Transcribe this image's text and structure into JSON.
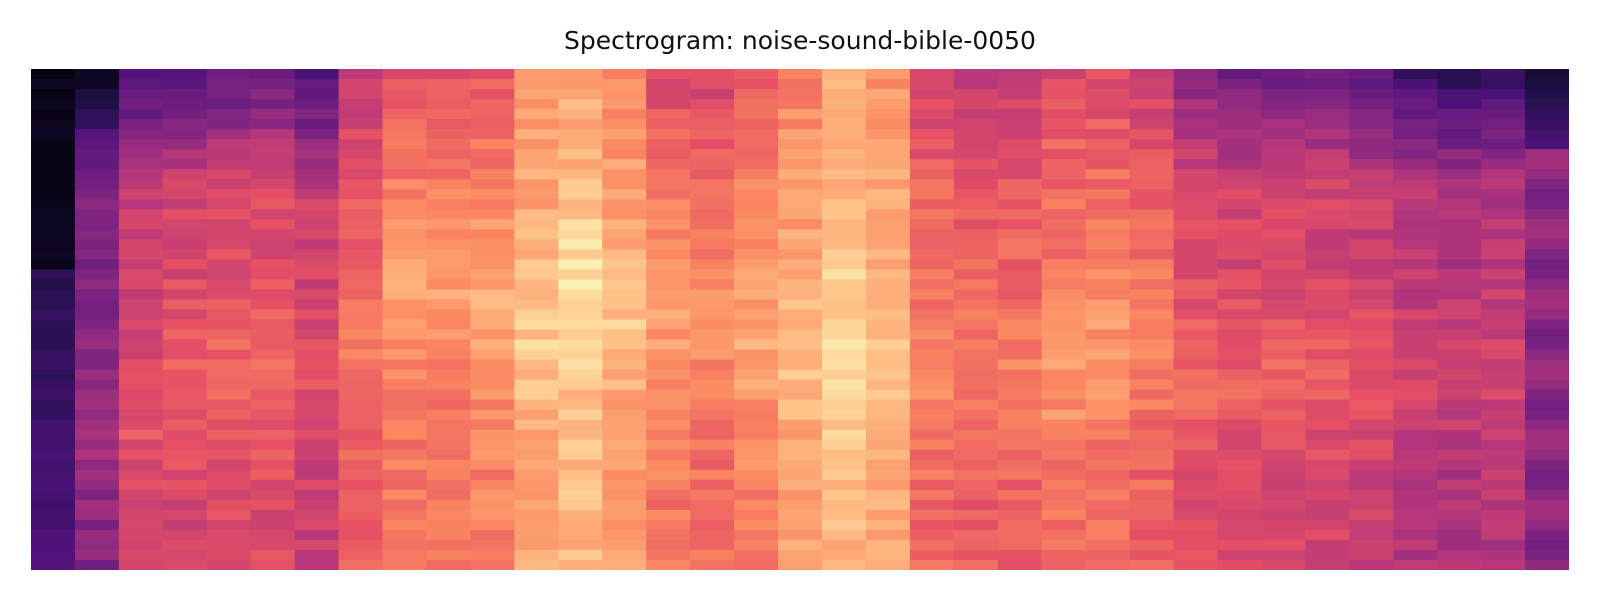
{
  "chart_data": {
    "type": "heatmap",
    "title": "Spectrogram: noise-sound-bible-0050",
    "xlabel": "",
    "ylabel": "",
    "colormap": "magma",
    "grid": false,
    "axes_visible": false,
    "columns": 35,
    "rows": 50,
    "value_range": [
      0,
      1
    ],
    "column_envelope": [
      0.05,
      0.38,
      0.55,
      0.58,
      0.6,
      0.6,
      0.55,
      0.65,
      0.72,
      0.72,
      0.74,
      0.82,
      0.86,
      0.8,
      0.72,
      0.7,
      0.74,
      0.8,
      0.86,
      0.82,
      0.68,
      0.65,
      0.66,
      0.7,
      0.7,
      0.67,
      0.6,
      0.58,
      0.58,
      0.57,
      0.55,
      0.5,
      0.48,
      0.5,
      0.4
    ],
    "column_top_rolloff": [
      0.0,
      0.3,
      0.32,
      0.34,
      0.3,
      0.28,
      0.32,
      0.12,
      0.1,
      0.1,
      0.08,
      0.05,
      0.05,
      0.06,
      0.12,
      0.12,
      0.08,
      0.06,
      0.04,
      0.05,
      0.12,
      0.12,
      0.12,
      0.1,
      0.1,
      0.12,
      0.2,
      0.24,
      0.24,
      0.22,
      0.26,
      0.3,
      0.3,
      0.32,
      0.3
    ],
    "column_peak_row": [
      25,
      35,
      35,
      30,
      30,
      30,
      30,
      28,
      20,
      20,
      22,
      25,
      22,
      24,
      24,
      24,
      26,
      28,
      27,
      30,
      30,
      30,
      30,
      30,
      27,
      27,
      30,
      30,
      30,
      30,
      30,
      30,
      30,
      30,
      30
    ]
  }
}
